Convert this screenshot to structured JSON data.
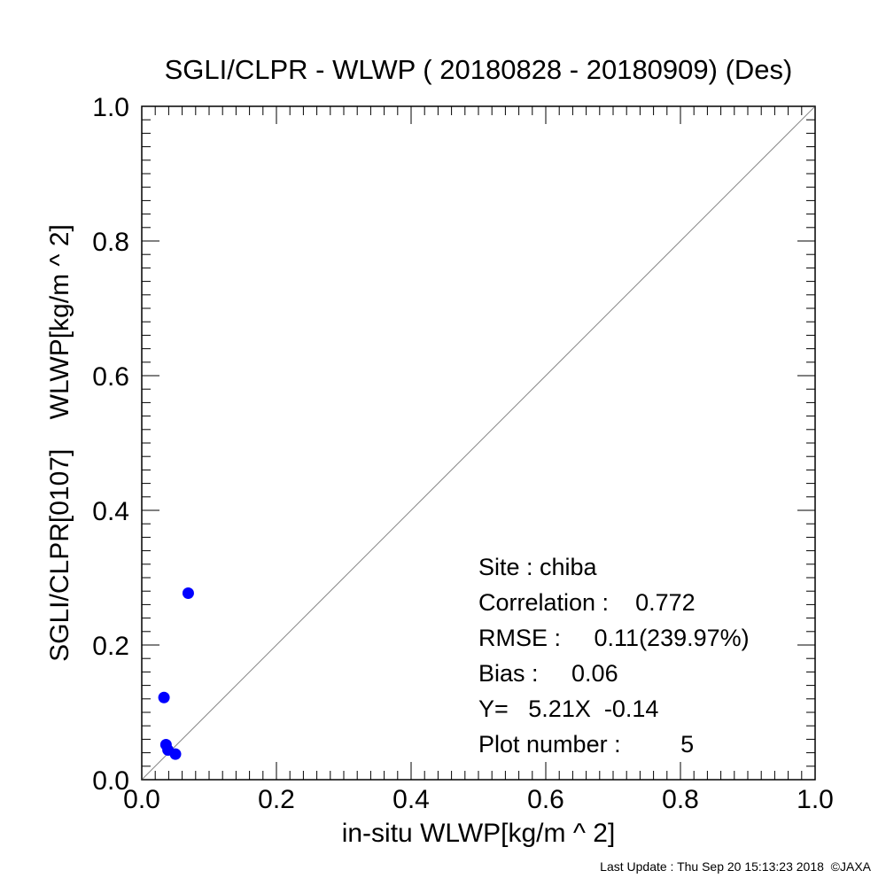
{
  "chart_data": {
    "type": "scatter",
    "title": "SGLI/CLPR - WLWP ( 20180828 - 20180909) (Des)",
    "xlabel": "in-situ WLWP[kg/m ^ 2]",
    "ylabel": "SGLI/CLPR[0107]    WLWP[kg/m ^ 2]",
    "xlim": [
      0.0,
      1.0
    ],
    "ylim": [
      0.0,
      1.0
    ],
    "x_ticks": [
      "0.0",
      "0.2",
      "0.4",
      "0.6",
      "0.8",
      "1.0"
    ],
    "y_ticks": [
      "0.0",
      "0.2",
      "0.4",
      "0.6",
      "0.8",
      "1.0"
    ],
    "reference_line": "1:1",
    "grid": false,
    "marker_color": "#0000ff",
    "points": [
      {
        "x": 0.069,
        "y": 0.277
      },
      {
        "x": 0.033,
        "y": 0.122
      },
      {
        "x": 0.036,
        "y": 0.052
      },
      {
        "x": 0.039,
        "y": 0.044
      },
      {
        "x": 0.05,
        "y": 0.038
      }
    ],
    "annotations": [
      "Site : chiba",
      "Correlation :    0.772",
      "RMSE :     0.11(239.97%)",
      "Bias :     0.06",
      "Y=   5.21X  -0.14",
      "Plot number :         5"
    ]
  },
  "footer": "Last Update : Thu Sep 20 15:13:23 2018  ©JAXA"
}
